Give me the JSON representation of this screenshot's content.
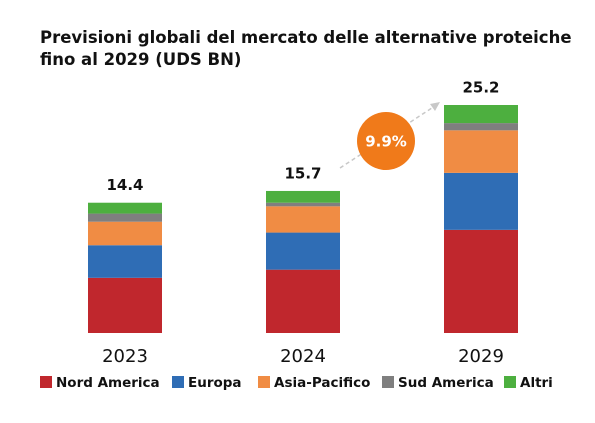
{
  "chart_data": {
    "type": "stacked_bar",
    "title": "Previsioni globali del mercato delle alternative proteiche fino al 2029 (UDS BN)",
    "categories": [
      "2023",
      "2024",
      "2029"
    ],
    "totals": [
      14.4,
      15.7,
      25.2
    ],
    "annotation": "9.9%",
    "series": [
      {
        "name": "Nord America",
        "color": "#c0272d",
        "values": [
          6.1,
          7.0,
          11.4
        ]
      },
      {
        "name": "Europa",
        "color": "#2f6db5",
        "values": [
          3.6,
          4.1,
          6.3
        ]
      },
      {
        "name": "Asia-Pacifico",
        "color": "#f08c44",
        "values": [
          2.6,
          2.9,
          4.7
        ]
      },
      {
        "name": "Sud America",
        "color": "#7f7f7f",
        "values": [
          0.9,
          0.4,
          0.8
        ]
      },
      {
        "name": "Altri",
        "color": "#4daf3f",
        "values": [
          1.2,
          1.3,
          2.0
        ]
      }
    ]
  }
}
